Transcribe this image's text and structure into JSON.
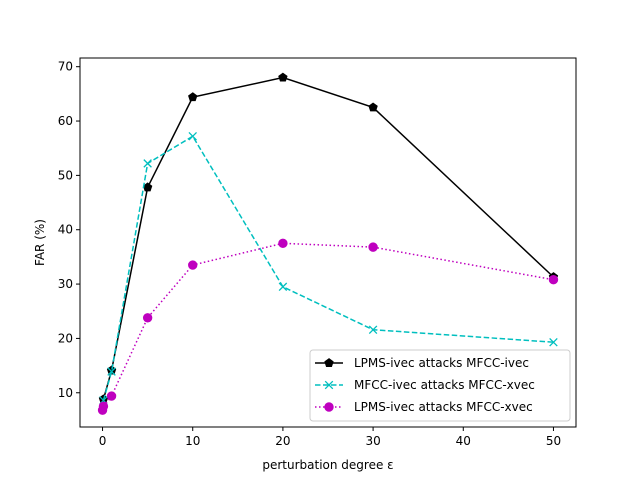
{
  "chart_data": {
    "type": "line",
    "title": "",
    "xlabel": "perturbation degree ε",
    "ylabel": "FAR (%)",
    "xlim": [
      -2.5,
      52.5
    ],
    "ylim": [
      3.7,
      71.6
    ],
    "xticks": [
      0,
      10,
      20,
      30,
      40,
      50
    ],
    "yticks": [
      10,
      20,
      30,
      40,
      50,
      60,
      70
    ],
    "grid": false,
    "legend_position": "lower-right",
    "x": [
      0.1,
      1,
      5,
      10,
      20,
      30,
      50
    ],
    "series": [
      {
        "name": "LPMS-ivec attacks MFCC-ivec",
        "color": "#000000",
        "linestyle": "solid",
        "marker": "pentagon",
        "x": [
          0.1,
          1,
          5,
          10,
          20,
          30,
          50
        ],
        "values": [
          8.8,
          14.1,
          47.8,
          64.4,
          68.0,
          62.5,
          31.3
        ]
      },
      {
        "name": "MFCC-ivec attacks MFCC-xvec",
        "color": "#00bfbf",
        "linestyle": "dashed",
        "marker": "x",
        "x": [
          0.1,
          1,
          5,
          10,
          20,
          30,
          50
        ],
        "values": [
          8.6,
          13.9,
          52.2,
          57.2,
          29.5,
          21.6,
          19.3
        ]
      },
      {
        "name": "LPMS-ivec attacks MFCC-xvec",
        "color": "#bf00bf",
        "linestyle": "dotted",
        "marker": "circle",
        "x": [
          0.0,
          0.1,
          1,
          5,
          10,
          20,
          30,
          50
        ],
        "values": [
          6.8,
          7.5,
          9.4,
          23.8,
          33.5,
          37.5,
          36.8,
          30.8
        ]
      }
    ]
  }
}
